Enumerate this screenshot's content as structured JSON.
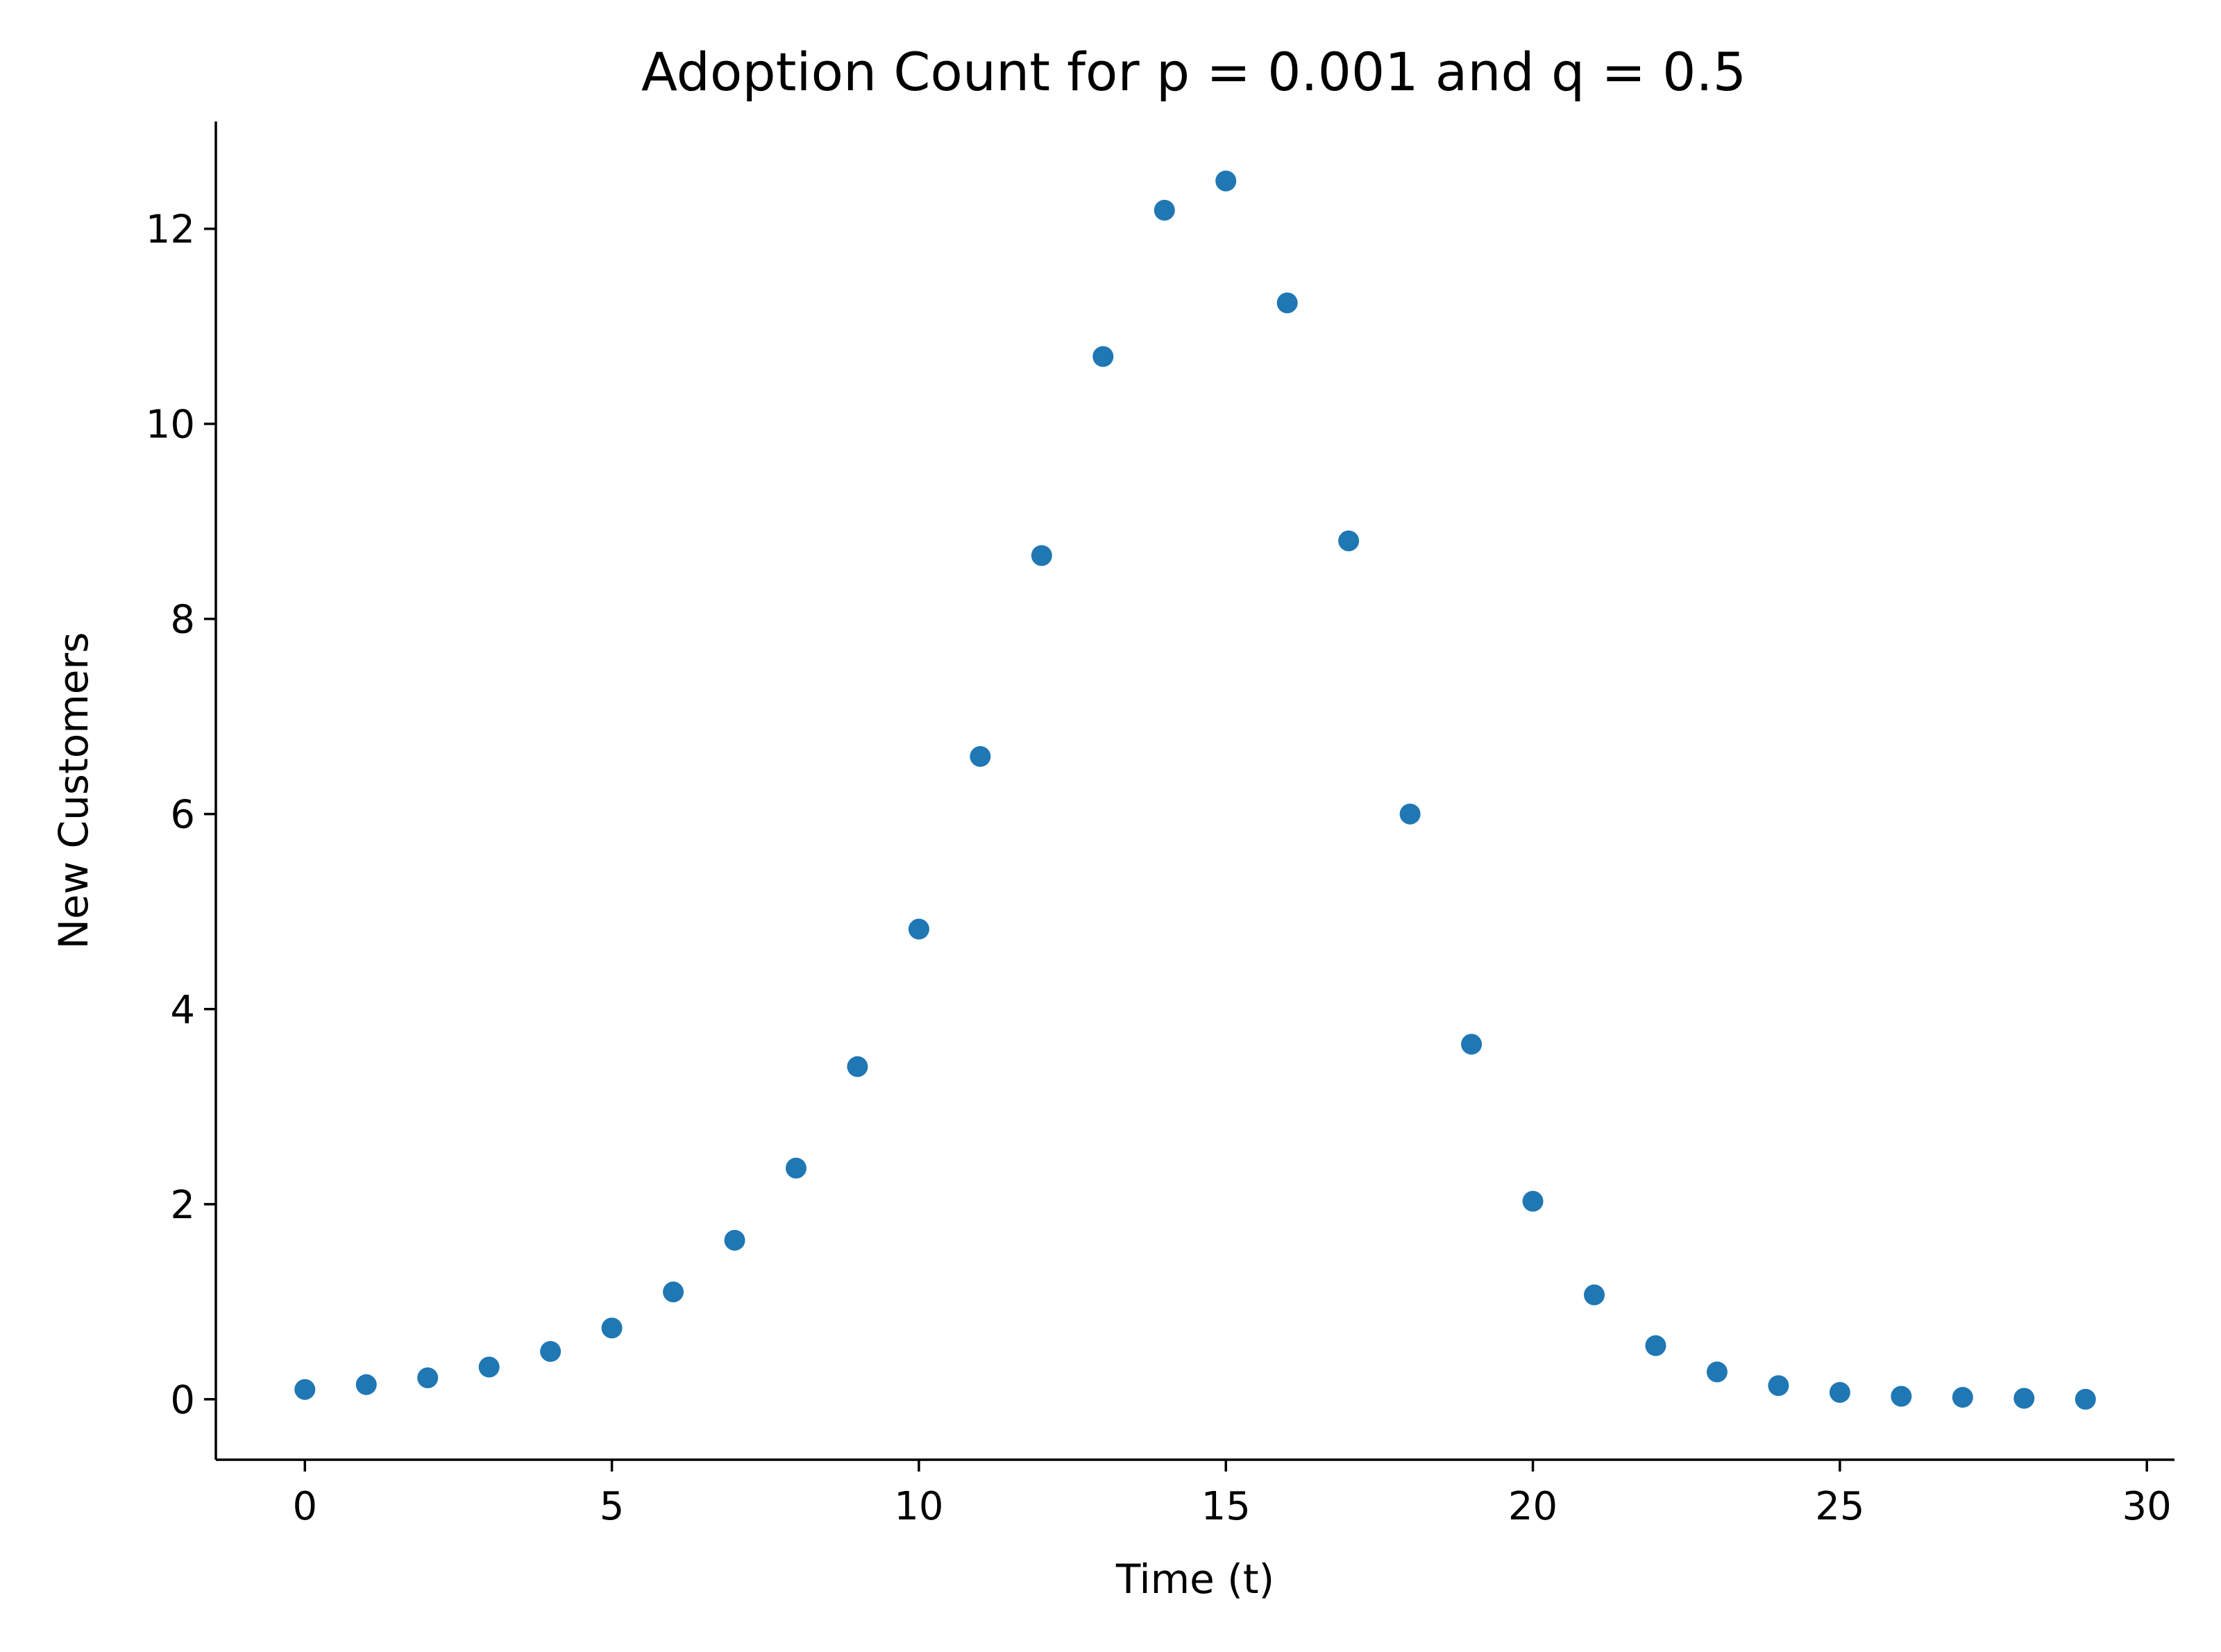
{
  "chart_data": {
    "type": "scatter",
    "title": "Adoption Count for p = 0.001 and q = 0.5",
    "xlabel": "Time (t)",
    "ylabel": "New Customers",
    "xlim": [
      -1.45,
      30.45
    ],
    "ylim": [
      -0.62,
      13.1
    ],
    "xticks": [
      0,
      5,
      10,
      15,
      20,
      25,
      30
    ],
    "yticks": [
      0,
      2,
      4,
      6,
      8,
      10,
      12
    ],
    "grid": false,
    "marker_color": "#1f77b4",
    "x": [
      0,
      1,
      2,
      3,
      4,
      5,
      6,
      7,
      8,
      9,
      10,
      11,
      12,
      13,
      14,
      15,
      16,
      17,
      18,
      19,
      20,
      21,
      22,
      23,
      24,
      25,
      26,
      27,
      28,
      29
    ],
    "y": [
      0.1,
      0.15,
      0.22,
      0.33,
      0.49,
      0.73,
      1.1,
      1.63,
      2.37,
      3.41,
      4.82,
      6.59,
      8.65,
      10.69,
      12.19,
      12.49,
      11.24,
      8.8,
      6.0,
      3.64,
      2.03,
      1.07,
      0.55,
      0.28,
      0.14,
      0.07,
      0.03,
      0.02,
      0.01,
      0.0
    ]
  }
}
